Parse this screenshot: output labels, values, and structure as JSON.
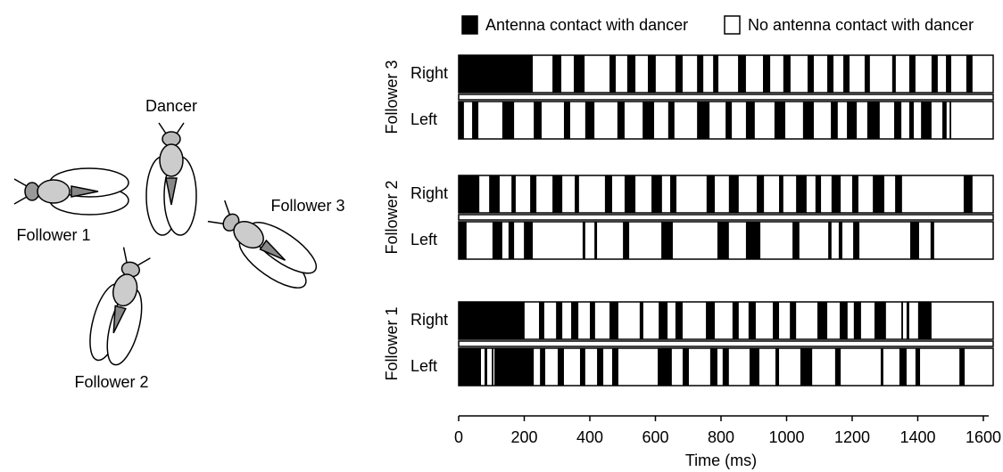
{
  "illustration": {
    "labels": [
      "Dancer",
      "Follower 1",
      "Follower 2",
      "Follower 3"
    ]
  },
  "chart_data": {
    "type": "timeline",
    "xlabel": "Time (ms)",
    "xlim": [
      0,
      1630
    ],
    "xticks": [
      0,
      200,
      400,
      600,
      800,
      1000,
      1200,
      1400,
      1600
    ],
    "legend": [
      {
        "name": "Antenna contact with dancer",
        "color": "#000000"
      },
      {
        "name": "No antenna contact with dancer",
        "color": "#ffffff"
      }
    ],
    "groups": [
      {
        "name": "Follower 3",
        "rows": [
          {
            "name": "Right",
            "intervals": [
              [
                0,
                226
              ],
              [
                286,
                313
              ],
              [
                351,
                384
              ],
              [
                460,
                479
              ],
              [
                514,
                539
              ],
              [
                577,
                601
              ],
              [
                661,
                683
              ],
              [
                727,
                746
              ],
              [
                776,
                792
              ],
              [
                852,
                876
              ],
              [
                928,
                950
              ],
              [
                990,
                1012
              ],
              [
                1064,
                1083
              ],
              [
                1124,
                1143
              ],
              [
                1173,
                1192
              ],
              [
                1238,
                1254
              ],
              [
                1322,
                1333
              ],
              [
                1374,
                1393
              ],
              [
                1442,
                1461
              ],
              [
                1486,
                1502
              ],
              [
                1548,
                1567
              ]
            ]
          },
          {
            "name": "Left",
            "intervals": [
              [
                0,
                16
              ],
              [
                41,
                60
              ],
              [
                133,
                169
              ],
              [
                229,
                253
              ],
              [
                321,
                340
              ],
              [
                386,
                414
              ],
              [
                484,
                506
              ],
              [
                561,
                596
              ],
              [
                639,
                658
              ],
              [
                727,
                765
              ],
              [
                814,
                833
              ],
              [
                876,
                903
              ],
              [
                963,
                996
              ],
              [
                1050,
                1083
              ],
              [
                1135,
                1156
              ],
              [
                1184,
                1214
              ],
              [
                1246,
                1284
              ],
              [
                1328,
                1350
              ],
              [
                1374,
                1388
              ],
              [
                1410,
                1442
              ],
              [
                1475,
                1488
              ],
              [
                1497,
                1502
              ]
            ]
          }
        ]
      },
      {
        "name": "Follower 2",
        "rows": [
          {
            "name": "Right",
            "intervals": [
              [
                0,
                63
              ],
              [
                93,
                125
              ],
              [
                161,
                174
              ],
              [
                218,
                237
              ],
              [
                286,
                316
              ],
              [
                354,
                367
              ],
              [
                446,
                468
              ],
              [
                506,
                539
              ],
              [
                588,
                620
              ],
              [
                645,
                664
              ],
              [
                756,
                781
              ],
              [
                824,
                854
              ],
              [
                909,
                931
              ],
              [
                977,
                990
              ],
              [
                1029,
                1061
              ],
              [
                1088,
                1105
              ],
              [
                1137,
                1165
              ],
              [
                1200,
                1219
              ],
              [
                1263,
                1298
              ],
              [
                1331,
                1352
              ],
              [
                1540,
                1567
              ]
            ]
          },
          {
            "name": "Left",
            "intervals": [
              [
                0,
                24
              ],
              [
                103,
                133
              ],
              [
                152,
                169
              ],
              [
                199,
                226
              ],
              [
                378,
                386
              ],
              [
                414,
                422
              ],
              [
                501,
                520
              ],
              [
                618,
                653
              ],
              [
                789,
                824
              ],
              [
                876,
                920
              ],
              [
                1018,
                1039
              ],
              [
                1127,
                1137
              ],
              [
                1159,
                1170
              ],
              [
                1203,
                1222
              ],
              [
                1377,
                1404
              ],
              [
                1439,
                1450
              ]
            ]
          }
        ]
      },
      {
        "name": "Follower 1",
        "rows": [
          {
            "name": "Right",
            "intervals": [
              [
                0,
                201
              ],
              [
                245,
                261
              ],
              [
                297,
                316
              ],
              [
                343,
                365
              ],
              [
                400,
                416
              ],
              [
                460,
                487
              ],
              [
                552,
                563
              ],
              [
                610,
                637
              ],
              [
                661,
                683
              ],
              [
                754,
                781
              ],
              [
                835,
                854
              ],
              [
                884,
                906
              ],
              [
                958,
                977
              ],
              [
                1010,
                1029
              ],
              [
                1094,
                1124
              ],
              [
                1162,
                1186
              ],
              [
                1205,
                1227
              ],
              [
                1268,
                1303
              ],
              [
                1350,
                1355
              ],
              [
                1366,
                1374
              ],
              [
                1401,
                1442
              ]
            ]
          },
          {
            "name": "Left",
            "intervals": [
              [
                0,
                68
              ],
              [
                79,
                87
              ],
              [
                101,
                106
              ],
              [
                109,
                229
              ],
              [
                248,
                264
              ],
              [
                302,
                321
              ],
              [
                370,
                386
              ],
              [
                422,
                441
              ],
              [
                468,
                487
              ],
              [
                607,
                650
              ],
              [
                683,
                702
              ],
              [
                767,
                789
              ],
              [
                805,
                824
              ],
              [
                887,
                917
              ],
              [
                966,
                977
              ],
              [
                1042,
                1078
              ],
              [
                1148,
                1165
              ],
              [
                1287,
                1295
              ],
              [
                1344,
                1366
              ],
              [
                1393,
                1407
              ],
              [
                1527,
                1543
              ]
            ]
          }
        ]
      }
    ]
  }
}
